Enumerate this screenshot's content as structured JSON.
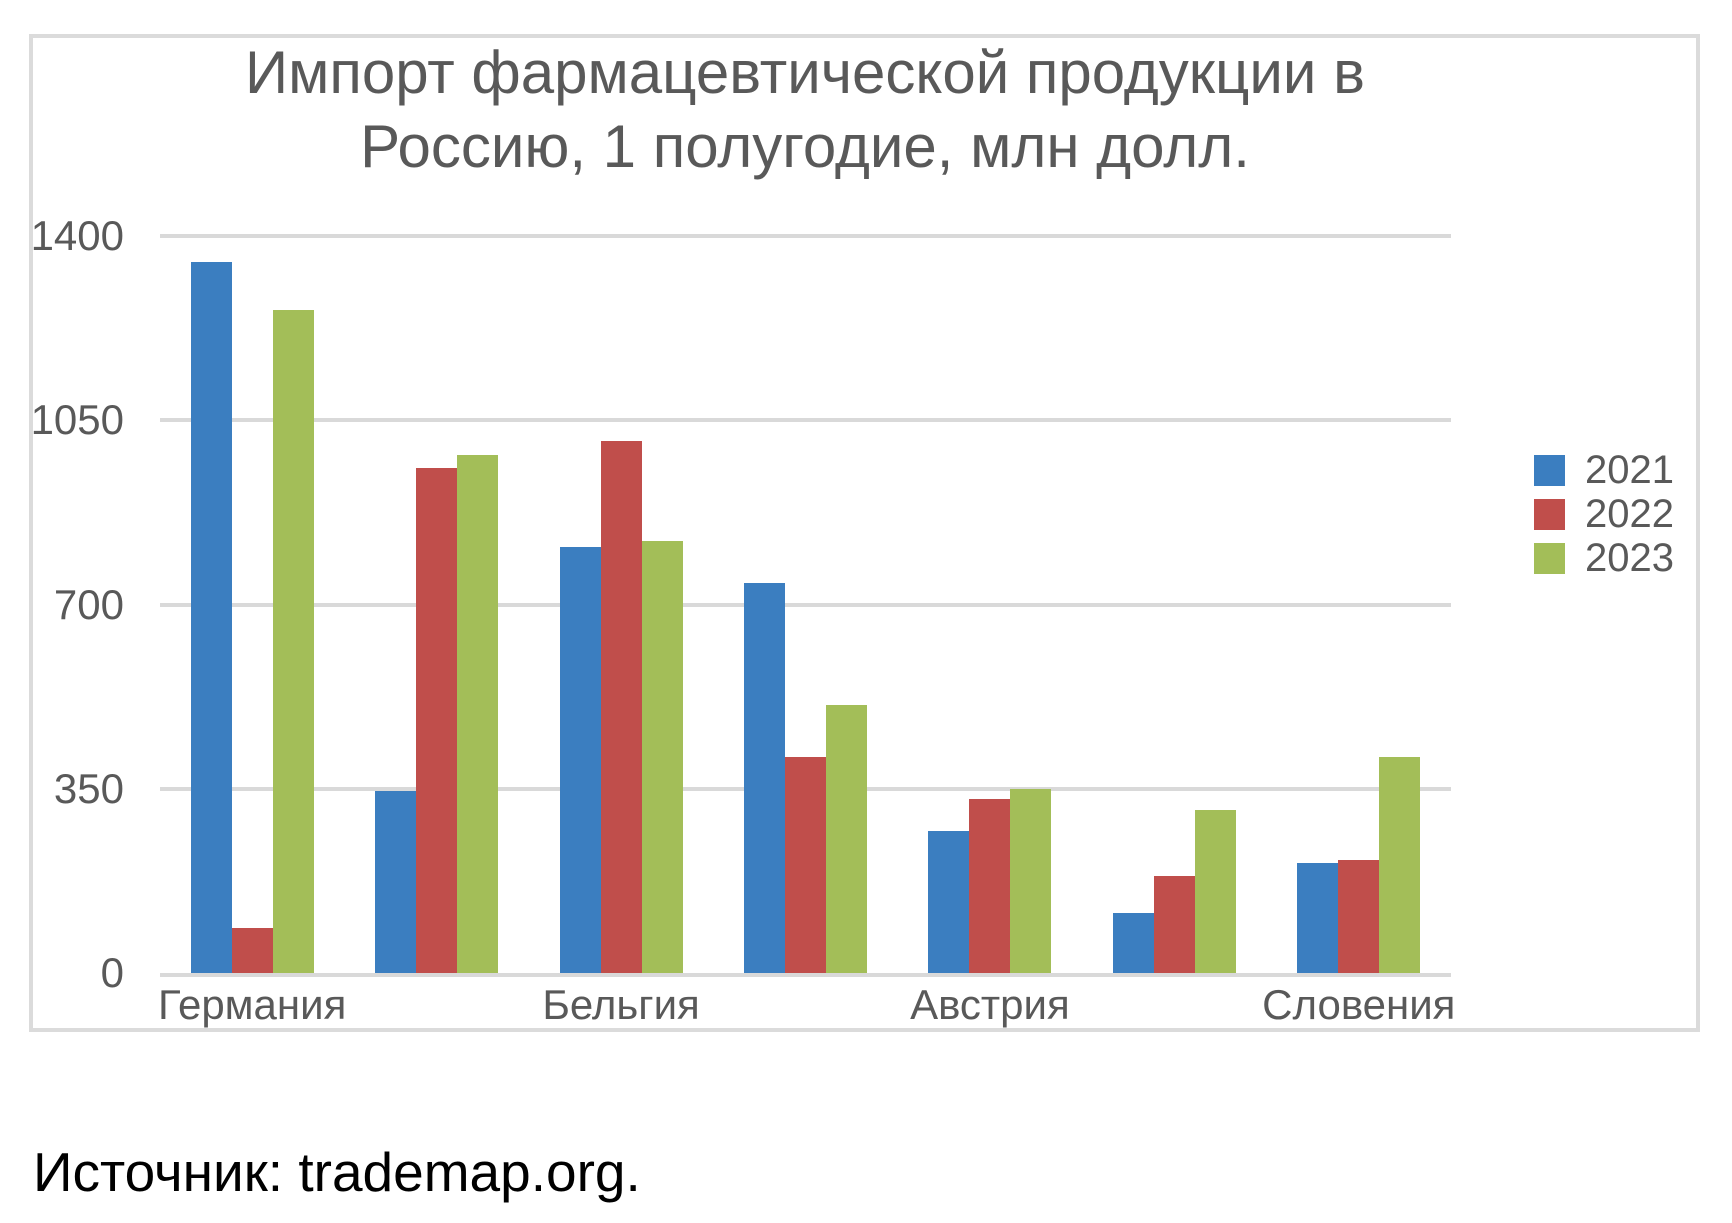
{
  "source_note": "Источник: trademap.org.",
  "legend": {
    "position": "middle-right",
    "items": [
      "2021",
      "2022",
      "2023"
    ]
  },
  "chart_data": {
    "type": "bar",
    "title": "Импорт фармацевтической продукции в Россию, 1 полугодие, млн долл.",
    "categories": [
      "Германия",
      "",
      "Бельгия",
      "",
      "Австрия",
      "",
      "Словения"
    ],
    "visible_category_labels": [
      "Германия",
      "Бельгия",
      "Австрия",
      "Словения"
    ],
    "series": [
      {
        "name": "2021",
        "color": "#3b7ec0",
        "values": [
          1350,
          345,
          810,
          740,
          270,
          115,
          210
        ]
      },
      {
        "name": "2022",
        "color": "#c04e4b",
        "values": [
          85,
          960,
          1010,
          410,
          330,
          185,
          215
        ]
      },
      {
        "name": "2023",
        "color": "#a3be58",
        "values": [
          1260,
          985,
          820,
          510,
          350,
          310,
          410
        ]
      }
    ],
    "xlabel": "",
    "ylabel": "",
    "ylim": [
      0,
      1400
    ],
    "yticks": [
      0,
      350,
      700,
      1050,
      1400
    ],
    "grid": "horizontal-only",
    "grid_color": "#d9d9d9",
    "axis_text_color": "#595959",
    "title_color": "#595959",
    "frame_border_color": "#dbdbdb",
    "background_color": "#ffffff"
  }
}
